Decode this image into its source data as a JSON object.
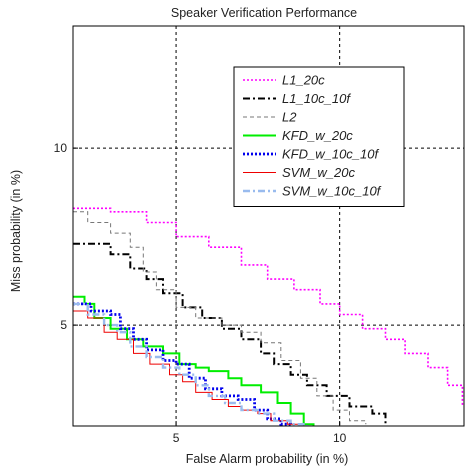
{
  "chart_data": {
    "type": "line",
    "title": "Speaker Verification Performance",
    "xlabel": "False Alarm probability (in %)",
    "ylabel": "Miss probability (in %)",
    "xlim": [
      1.85,
      13.8
    ],
    "ylim": [
      2.15,
      13.45
    ],
    "xticks": [
      5,
      10
    ],
    "yticks": [
      5,
      10
    ],
    "xtick_labels": [
      "5",
      "10"
    ],
    "ytick_labels": [
      "5",
      "10"
    ],
    "grid": true,
    "grid_style": "dashed",
    "legend_position": "top-right",
    "series": [
      {
        "name": "L1_20c",
        "color": "#ff00ff",
        "dash": "dotted",
        "width": 1.6,
        "points": [
          [
            1.85,
            8.3
          ],
          [
            3.0,
            8.2
          ],
          [
            4.1,
            7.9
          ],
          [
            5.0,
            7.5
          ],
          [
            6.0,
            7.2
          ],
          [
            7.0,
            6.7
          ],
          [
            7.8,
            6.3
          ],
          [
            8.6,
            6.0
          ],
          [
            9.4,
            5.6
          ],
          [
            10.0,
            5.3
          ],
          [
            10.7,
            4.9
          ],
          [
            11.4,
            4.6
          ],
          [
            12.0,
            4.2
          ],
          [
            12.7,
            3.8
          ],
          [
            13.3,
            3.3
          ],
          [
            13.75,
            2.7
          ]
        ]
      },
      {
        "name": "L1_10c_10f",
        "color": "#000000",
        "dash": "dashdot",
        "width": 2.0,
        "points": [
          [
            1.85,
            7.3
          ],
          [
            2.5,
            7.3
          ],
          [
            3.0,
            7.0
          ],
          [
            3.6,
            6.6
          ],
          [
            4.1,
            6.3
          ],
          [
            4.6,
            5.9
          ],
          [
            5.2,
            5.5
          ],
          [
            5.8,
            5.2
          ],
          [
            6.4,
            4.9
          ],
          [
            7.0,
            4.6
          ],
          [
            7.6,
            4.2
          ],
          [
            8.0,
            3.9
          ],
          [
            8.5,
            3.6
          ],
          [
            9.0,
            3.3
          ],
          [
            9.6,
            3.0
          ],
          [
            10.3,
            2.7
          ],
          [
            11.0,
            2.5
          ],
          [
            11.4,
            2.2
          ]
        ]
      },
      {
        "name": "L2",
        "color": "#777777",
        "dash": "dashed",
        "width": 1.0,
        "points": [
          [
            1.85,
            8.2
          ],
          [
            2.3,
            7.9
          ],
          [
            3.0,
            7.6
          ],
          [
            3.6,
            7.2
          ],
          [
            4.0,
            6.5
          ],
          [
            4.4,
            6.0
          ],
          [
            5.0,
            5.5
          ],
          [
            5.6,
            5.2
          ],
          [
            6.4,
            5.0
          ],
          [
            7.0,
            4.8
          ],
          [
            7.6,
            4.5
          ],
          [
            8.2,
            4.0
          ],
          [
            8.8,
            3.5
          ],
          [
            9.3,
            3.0
          ],
          [
            9.8,
            2.6
          ],
          [
            10.3,
            2.3
          ],
          [
            10.8,
            2.2
          ]
        ]
      },
      {
        "name": "KFD_w_20c",
        "color": "#00ee00",
        "dash": "solid",
        "width": 2.0,
        "points": [
          [
            1.85,
            5.8
          ],
          [
            2.2,
            5.6
          ],
          [
            2.5,
            5.2
          ],
          [
            3.0,
            4.9
          ],
          [
            3.5,
            4.6
          ],
          [
            4.0,
            4.4
          ],
          [
            4.6,
            4.2
          ],
          [
            5.1,
            3.9
          ],
          [
            5.6,
            3.8
          ],
          [
            6.0,
            3.7
          ],
          [
            6.6,
            3.5
          ],
          [
            7.0,
            3.3
          ],
          [
            7.6,
            3.1
          ],
          [
            8.1,
            2.8
          ],
          [
            8.5,
            2.5
          ],
          [
            8.9,
            2.2
          ],
          [
            9.2,
            2.15
          ]
        ]
      },
      {
        "name": "KFD_w_10c_10f",
        "color": "#0000ee",
        "dash": "dotted",
        "width": 2.8,
        "points": [
          [
            1.85,
            5.6
          ],
          [
            2.4,
            5.4
          ],
          [
            3.0,
            5.3
          ],
          [
            3.3,
            4.9
          ],
          [
            3.7,
            4.6
          ],
          [
            4.1,
            4.3
          ],
          [
            4.6,
            4.0
          ],
          [
            5.0,
            3.9
          ],
          [
            5.4,
            3.5
          ],
          [
            5.9,
            3.2
          ],
          [
            6.4,
            3.0
          ],
          [
            6.9,
            2.9
          ],
          [
            7.4,
            2.6
          ],
          [
            7.8,
            2.35
          ],
          [
            8.2,
            2.2
          ],
          [
            8.5,
            2.15
          ]
        ]
      },
      {
        "name": "SVM_w_20c",
        "color": "#ee0000",
        "dash": "solid",
        "width": 1.0,
        "points": [
          [
            1.85,
            5.4
          ],
          [
            2.3,
            5.2
          ],
          [
            2.8,
            4.8
          ],
          [
            3.2,
            4.6
          ],
          [
            3.7,
            4.2
          ],
          [
            4.2,
            3.9
          ],
          [
            4.8,
            3.6
          ],
          [
            5.2,
            3.4
          ],
          [
            5.6,
            3.1
          ],
          [
            6.1,
            2.9
          ],
          [
            6.6,
            2.7
          ],
          [
            7.0,
            2.6
          ],
          [
            7.5,
            2.5
          ],
          [
            7.9,
            2.3
          ],
          [
            8.4,
            2.2
          ],
          [
            8.9,
            2.15
          ]
        ]
      },
      {
        "name": "SVM_w_10c_10f",
        "color": "#99bbee",
        "dash": "dashdot",
        "width": 2.4,
        "points": [
          [
            1.85,
            5.6
          ],
          [
            2.3,
            5.3
          ],
          [
            2.8,
            5.0
          ],
          [
            3.2,
            4.8
          ],
          [
            3.6,
            4.4
          ],
          [
            4.1,
            4.1
          ],
          [
            4.6,
            3.8
          ],
          [
            5.1,
            3.6
          ],
          [
            5.6,
            3.3
          ],
          [
            6.0,
            3.0
          ],
          [
            6.5,
            2.8
          ],
          [
            7.0,
            2.6
          ],
          [
            7.5,
            2.5
          ],
          [
            8.0,
            2.3
          ],
          [
            8.5,
            2.2
          ],
          [
            9.0,
            2.15
          ]
        ]
      }
    ]
  }
}
